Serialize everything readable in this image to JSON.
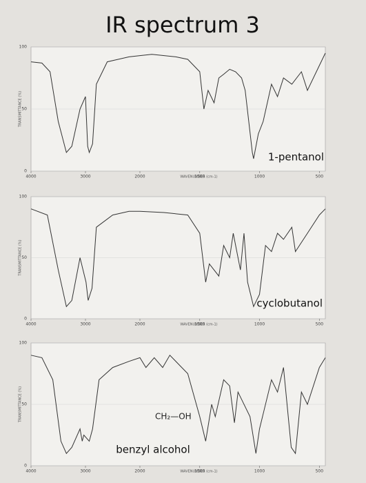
{
  "title": "IR spectrum 3",
  "chart_data": [
    {
      "type": "line",
      "xlabel": "WAVENUMBER (cm-1)",
      "ylabel": "TRANSMITTANCE (%)",
      "xlim": [
        4000,
        450
      ],
      "xticks": [
        4000,
        3000,
        2000,
        1500,
        1000,
        500
      ],
      "xscale_break": 2000,
      "ylim": [
        0,
        100
      ],
      "yticks": [
        0,
        50,
        100
      ],
      "x": [
        4000,
        3800,
        3650,
        3500,
        3350,
        3250,
        3100,
        3000,
        2960,
        2930,
        2870,
        2800,
        2600,
        2400,
        2200,
        2000,
        1900,
        1700,
        1600,
        1500,
        1465,
        1430,
        1380,
        1340,
        1300,
        1250,
        1200,
        1150,
        1120,
        1060,
        1050,
        1010,
        970,
        900,
        850,
        800,
        730,
        650,
        600,
        500,
        450
      ],
      "series": [
        {
          "name": "1-pentanol",
          "color": "#333333",
          "values": [
            88,
            87,
            80,
            40,
            15,
            20,
            50,
            60,
            20,
            15,
            22,
            70,
            88,
            90,
            92,
            93,
            94,
            92,
            90,
            80,
            50,
            65,
            55,
            75,
            78,
            82,
            80,
            75,
            65,
            15,
            10,
            30,
            40,
            70,
            60,
            75,
            70,
            80,
            65,
            85,
            95
          ]
        }
      ]
    },
    {
      "type": "line",
      "xlabel": "WAVENUMBER (cm-1)",
      "ylabel": "TRANSMITTANCE (%)",
      "xlim": [
        4000,
        450
      ],
      "xticks": [
        4000,
        3000,
        2000,
        1500,
        1000,
        500
      ],
      "xscale_break": 2000,
      "ylim": [
        0,
        100
      ],
      "yticks": [
        0,
        50,
        100
      ],
      "x": [
        4000,
        3700,
        3500,
        3350,
        3250,
        3100,
        2990,
        2950,
        2880,
        2800,
        2500,
        2200,
        2000,
        1800,
        1600,
        1500,
        1450,
        1420,
        1340,
        1300,
        1250,
        1220,
        1160,
        1130,
        1100,
        1050,
        1000,
        950,
        900,
        850,
        800,
        730,
        700,
        600,
        500,
        450
      ],
      "series": [
        {
          "name": "cyclobutanol",
          "color": "#333333",
          "values": [
            90,
            85,
            40,
            10,
            15,
            50,
            30,
            15,
            25,
            75,
            85,
            88,
            88,
            87,
            85,
            70,
            30,
            45,
            35,
            60,
            50,
            70,
            40,
            70,
            30,
            10,
            20,
            60,
            55,
            70,
            65,
            75,
            55,
            70,
            85,
            90
          ]
        }
      ]
    },
    {
      "type": "line",
      "xlabel": "WAVENUMBER (cm-1)",
      "ylabel": "TRANSMITTANCE (%)",
      "xlim": [
        4000,
        450
      ],
      "xticks": [
        4000,
        3000,
        2000,
        1500,
        1000,
        500
      ],
      "xscale_break": 2000,
      "ylim": [
        0,
        100
      ],
      "yticks": [
        0,
        50,
        100
      ],
      "annotation": "CH₂—OH",
      "x": [
        4000,
        3800,
        3600,
        3450,
        3350,
        3250,
        3100,
        3060,
        3030,
        2930,
        2870,
        2750,
        2500,
        2200,
        2000,
        1950,
        1880,
        1810,
        1750,
        1600,
        1500,
        1450,
        1400,
        1370,
        1300,
        1250,
        1210,
        1180,
        1080,
        1030,
        1000,
        900,
        850,
        800,
        735,
        700,
        650,
        600,
        500,
        450
      ],
      "series": [
        {
          "name": "benzyl alcohol",
          "color": "#333333",
          "values": [
            90,
            88,
            70,
            20,
            10,
            15,
            30,
            20,
            25,
            20,
            30,
            70,
            80,
            85,
            88,
            80,
            88,
            80,
            90,
            75,
            40,
            20,
            50,
            40,
            70,
            65,
            35,
            60,
            40,
            10,
            30,
            70,
            60,
            80,
            15,
            10,
            60,
            50,
            80,
            88
          ]
        }
      ]
    }
  ]
}
